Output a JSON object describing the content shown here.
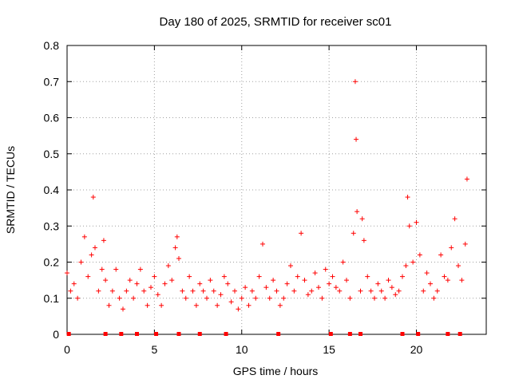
{
  "chart_data": {
    "type": "scatter",
    "title": "Day 180 of 2025, SRMTID for receiver sc01",
    "xlabel": "GPS time / hours",
    "ylabel": "SRMTID / TECUs",
    "xlim": [
      0,
      24
    ],
    "ylim": [
      0,
      0.8
    ],
    "xticks": [
      0,
      5,
      10,
      15,
      20
    ],
    "yticks": [
      0,
      0.1,
      0.2,
      0.3,
      0.4,
      0.5,
      0.6,
      0.7,
      0.8
    ],
    "xtick_labels": [
      "0",
      "5",
      "10",
      "15",
      "20"
    ],
    "ytick_labels": [
      "0",
      "0.1",
      "0.2",
      "0.3",
      "0.4",
      "0.5",
      "0.6",
      "0.7",
      "0.8"
    ],
    "grid": true,
    "marker": "plus",
    "color": "#ff0000",
    "series": [
      {
        "name": "SRMTID",
        "x": [
          0.0,
          0.2,
          0.4,
          0.6,
          0.8,
          1.0,
          1.2,
          1.4,
          1.5,
          1.6,
          1.8,
          2.0,
          2.1,
          2.2,
          2.4,
          2.6,
          2.8,
          3.0,
          3.2,
          3.4,
          3.6,
          3.8,
          4.0,
          4.2,
          4.4,
          4.6,
          4.8,
          5.0,
          5.2,
          5.4,
          5.6,
          5.8,
          6.0,
          6.2,
          6.3,
          6.4,
          6.6,
          6.8,
          7.0,
          7.2,
          7.4,
          7.6,
          7.8,
          8.0,
          8.2,
          8.4,
          8.6,
          8.8,
          9.0,
          9.2,
          9.4,
          9.6,
          9.8,
          10.0,
          10.2,
          10.4,
          10.6,
          10.8,
          11.0,
          11.2,
          11.4,
          11.6,
          11.8,
          12.0,
          12.2,
          12.4,
          12.6,
          12.8,
          13.0,
          13.2,
          13.4,
          13.6,
          13.8,
          14.0,
          14.2,
          14.4,
          14.6,
          14.8,
          15.0,
          15.2,
          15.4,
          15.6,
          15.8,
          16.0,
          16.2,
          16.4,
          16.5,
          16.55,
          16.6,
          16.8,
          16.9,
          17.0,
          17.2,
          17.4,
          17.6,
          17.8,
          18.0,
          18.2,
          18.4,
          18.6,
          18.8,
          19.0,
          19.2,
          19.4,
          19.5,
          19.6,
          19.8,
          20.0,
          20.2,
          20.4,
          20.6,
          20.8,
          21.0,
          21.2,
          21.4,
          21.6,
          21.8,
          22.0,
          22.2,
          22.4,
          22.6,
          22.8,
          22.9
        ],
        "y": [
          0.17,
          0.12,
          0.14,
          0.1,
          0.2,
          0.27,
          0.16,
          0.22,
          0.38,
          0.24,
          0.12,
          0.18,
          0.26,
          0.15,
          0.08,
          0.12,
          0.18,
          0.1,
          0.07,
          0.12,
          0.15,
          0.1,
          0.14,
          0.18,
          0.12,
          0.08,
          0.13,
          0.16,
          0.11,
          0.08,
          0.14,
          0.19,
          0.15,
          0.24,
          0.27,
          0.21,
          0.12,
          0.1,
          0.16,
          0.12,
          0.08,
          0.14,
          0.12,
          0.1,
          0.15,
          0.12,
          0.08,
          0.11,
          0.16,
          0.14,
          0.09,
          0.12,
          0.07,
          0.1,
          0.13,
          0.08,
          0.12,
          0.1,
          0.16,
          0.25,
          0.13,
          0.1,
          0.15,
          0.12,
          0.08,
          0.1,
          0.14,
          0.19,
          0.12,
          0.16,
          0.28,
          0.15,
          0.11,
          0.12,
          0.17,
          0.13,
          0.1,
          0.18,
          0.14,
          0.16,
          0.13,
          0.12,
          0.2,
          0.15,
          0.1,
          0.28,
          0.7,
          0.54,
          0.34,
          0.12,
          0.32,
          0.26,
          0.16,
          0.12,
          0.1,
          0.14,
          0.12,
          0.1,
          0.15,
          0.13,
          0.11,
          0.12,
          0.16,
          0.19,
          0.38,
          0.3,
          0.2,
          0.31,
          0.22,
          0.12,
          0.17,
          0.14,
          0.1,
          0.12,
          0.22,
          0.16,
          0.15,
          0.24,
          0.32,
          0.19,
          0.15,
          0.25,
          0.43
        ],
        "zero_x": [
          0.1,
          2.2,
          3.1,
          4.0,
          5.1,
          6.4,
          7.6,
          9.1,
          12.1,
          15.1,
          16.2,
          16.8,
          19.2,
          20.1,
          21.8,
          22.5
        ]
      }
    ]
  }
}
